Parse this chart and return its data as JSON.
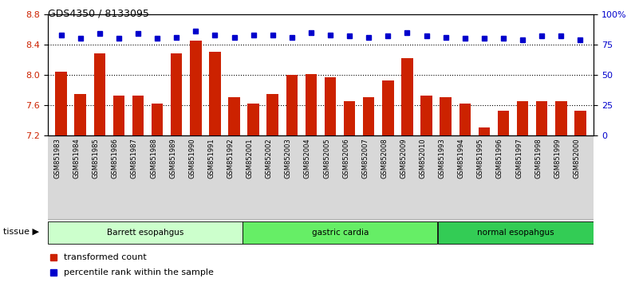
{
  "title": "GDS4350 / 8133095",
  "samples": [
    "GSM851983",
    "GSM851984",
    "GSM851985",
    "GSM851986",
    "GSM851987",
    "GSM851988",
    "GSM851989",
    "GSM851990",
    "GSM851991",
    "GSM851992",
    "GSM852001",
    "GSM852002",
    "GSM852003",
    "GSM852004",
    "GSM852005",
    "GSM852006",
    "GSM852007",
    "GSM852008",
    "GSM852009",
    "GSM852010",
    "GSM851993",
    "GSM851994",
    "GSM851995",
    "GSM851996",
    "GSM851997",
    "GSM851998",
    "GSM851999",
    "GSM852000"
  ],
  "bar_values": [
    8.04,
    7.75,
    8.28,
    7.72,
    7.72,
    7.62,
    8.28,
    8.45,
    8.3,
    7.7,
    7.62,
    7.75,
    8.0,
    8.01,
    7.97,
    7.65,
    7.7,
    7.92,
    8.22,
    7.72,
    7.7,
    7.62,
    7.3,
    7.53,
    7.65,
    7.65,
    7.65,
    7.52
  ],
  "percentile_values": [
    83,
    80,
    84,
    80,
    84,
    80,
    81,
    86,
    83,
    81,
    83,
    83,
    81,
    85,
    83,
    82,
    81,
    82,
    85,
    82,
    81,
    80,
    80,
    80,
    79,
    82,
    82,
    79
  ],
  "groups": [
    {
      "label": "Barrett esopahgus",
      "start": 0,
      "end": 9,
      "color": "#ccffcc"
    },
    {
      "label": "gastric cardia",
      "start": 10,
      "end": 19,
      "color": "#66ee66"
    },
    {
      "label": "normal esopahgus",
      "start": 20,
      "end": 27,
      "color": "#33cc55"
    }
  ],
  "bar_color": "#cc2200",
  "dot_color": "#0000cc",
  "ylim_left": [
    7.2,
    8.8
  ],
  "ylim_right": [
    0,
    100
  ],
  "yticks_left": [
    7.2,
    7.6,
    8.0,
    8.4,
    8.8
  ],
  "yticks_right": [
    0,
    25,
    50,
    75,
    100
  ],
  "ytick_labels_right": [
    "0",
    "25",
    "50",
    "75",
    "100%"
  ],
  "hlines": [
    7.6,
    8.0,
    8.4
  ],
  "background_color": "#ffffff",
  "xticklabel_bg": "#d8d8d8"
}
